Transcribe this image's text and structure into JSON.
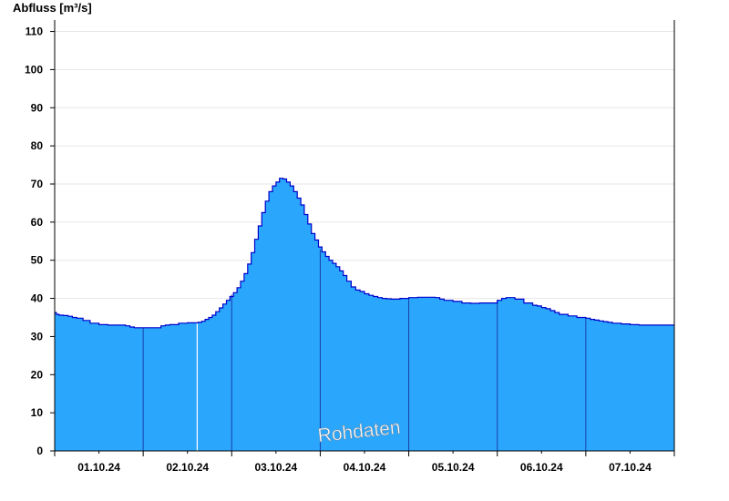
{
  "chart_data": {
    "type": "area",
    "ylabel": "Abfluss [m³/s]",
    "ylim": [
      0,
      113
    ],
    "y_ticks": [
      "0",
      "10",
      "20",
      "30",
      "40",
      "50",
      "60",
      "70",
      "80",
      "90",
      "100",
      "110"
    ],
    "x_ticks": [
      "01.10.24",
      "02.10.24",
      "03.10.24",
      "04.10.24",
      "05.10.24",
      "06.10.24",
      "07.10.24"
    ],
    "x_range_days": [
      0,
      7
    ],
    "grid": true,
    "annotation": "Rohdaten",
    "colors": {
      "fill": "#2aa6fc",
      "line": "#0000cc",
      "day_separator": "#1b3fa8",
      "gap_line": "#ffffff"
    },
    "series": [
      {
        "x_days": [
          0.0,
          0.02,
          0.05,
          0.1,
          0.15,
          0.2,
          0.25,
          0.32,
          0.4,
          0.5,
          0.6,
          0.7,
          0.8,
          0.85,
          0.9,
          1.0,
          1.1,
          1.2,
          1.25,
          1.3,
          1.4,
          1.5,
          1.58,
          1.62,
          1.66,
          1.7,
          1.74,
          1.78,
          1.82,
          1.86,
          1.9,
          1.94,
          1.98,
          2.02,
          2.06,
          2.1,
          2.14,
          2.18,
          2.22,
          2.26,
          2.3,
          2.34,
          2.38,
          2.42,
          2.46,
          2.5,
          2.54,
          2.58,
          2.62,
          2.66,
          2.7,
          2.74,
          2.78,
          2.82,
          2.86,
          2.9,
          2.94,
          2.98,
          3.02,
          3.06,
          3.1,
          3.14,
          3.18,
          3.22,
          3.26,
          3.3,
          3.35,
          3.4,
          3.45,
          3.5,
          3.55,
          3.6,
          3.65,
          3.7,
          3.75,
          3.8,
          3.9,
          4.0,
          4.1,
          4.2,
          4.3,
          4.35,
          4.4,
          4.5,
          4.6,
          4.7,
          4.8,
          4.9,
          5.0,
          5.05,
          5.1,
          5.2,
          5.3,
          5.4,
          5.45,
          5.5,
          5.55,
          5.6,
          5.65,
          5.7,
          5.8,
          5.9,
          6.0,
          6.05,
          6.1,
          6.15,
          6.2,
          6.25,
          6.3,
          6.4,
          6.5,
          6.6,
          6.7,
          6.8,
          6.9,
          6.98,
          7.0
        ],
        "values": [
          36.3,
          35.8,
          35.6,
          35.5,
          35.3,
          35.0,
          34.8,
          34.2,
          33.5,
          33.1,
          33.0,
          33.0,
          32.8,
          32.5,
          32.3,
          32.3,
          32.3,
          32.8,
          33.0,
          33.1,
          33.5,
          33.6,
          33.6,
          33.7,
          34.0,
          34.5,
          35.0,
          35.6,
          36.5,
          37.5,
          38.5,
          39.5,
          40.5,
          41.5,
          42.8,
          44.5,
          46.5,
          49.0,
          52.0,
          55.5,
          59.0,
          62.5,
          65.5,
          68.0,
          69.5,
          70.5,
          71.5,
          71.3,
          70.5,
          69.5,
          68.0,
          66.3,
          64.5,
          62.0,
          59.5,
          57.0,
          55.3,
          53.5,
          52.2,
          51.0,
          50.0,
          49.2,
          48.3,
          47.2,
          46.0,
          44.5,
          43.0,
          42.2,
          41.8,
          41.2,
          40.8,
          40.5,
          40.2,
          40.0,
          39.9,
          39.8,
          40.0,
          40.2,
          40.3,
          40.3,
          40.2,
          39.8,
          39.5,
          39.2,
          38.8,
          38.7,
          38.8,
          38.8,
          39.5,
          40.0,
          40.2,
          39.8,
          38.8,
          38.2,
          38.0,
          37.6,
          37.3,
          36.8,
          36.3,
          35.8,
          35.4,
          35.0,
          34.8,
          34.5,
          34.3,
          34.1,
          33.9,
          33.7,
          33.5,
          33.3,
          33.1,
          33.0,
          33.0,
          33.0,
          33.0,
          33.0,
          33.0
        ]
      }
    ]
  }
}
